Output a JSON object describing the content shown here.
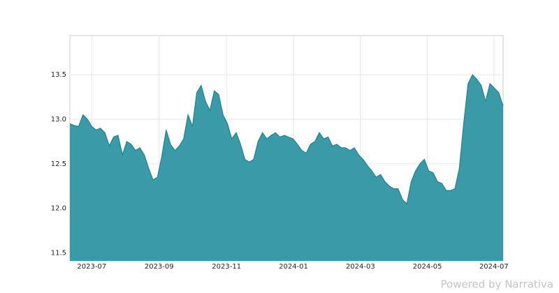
{
  "chart_data": {
    "type": "area",
    "values": [
      12.95,
      12.93,
      12.92,
      13.05,
      13.0,
      12.92,
      12.88,
      12.9,
      12.85,
      12.7,
      12.8,
      12.82,
      12.6,
      12.75,
      12.72,
      12.65,
      12.68,
      12.6,
      12.45,
      12.32,
      12.35,
      12.58,
      12.88,
      12.72,
      12.65,
      12.7,
      12.78,
      13.05,
      12.92,
      13.3,
      13.38,
      13.2,
      13.1,
      13.32,
      13.28,
      13.05,
      12.95,
      12.78,
      12.85,
      12.72,
      12.55,
      12.52,
      12.55,
      12.75,
      12.85,
      12.78,
      12.82,
      12.85,
      12.8,
      12.82,
      12.8,
      12.78,
      12.72,
      12.65,
      12.62,
      12.72,
      12.75,
      12.85,
      12.78,
      12.8,
      12.7,
      12.72,
      12.68,
      12.68,
      12.65,
      12.68,
      12.6,
      12.55,
      12.48,
      12.42,
      12.35,
      12.38,
      12.3,
      12.25,
      12.22,
      12.22,
      12.1,
      12.05,
      12.3,
      12.42,
      12.5,
      12.55,
      12.42,
      12.4,
      12.3,
      12.28,
      12.2,
      12.2,
      12.22,
      12.45,
      12.95,
      13.4,
      13.5,
      13.45,
      13.38,
      13.2,
      13.4,
      13.35,
      13.3,
      13.15
    ],
    "color": "#3a9aa8",
    "line_color": "#1f8290",
    "xlim": [
      0,
      99
    ],
    "xticks": [
      {
        "value": 5,
        "label": "2023-07"
      },
      {
        "value": 20.4,
        "label": "2023-09"
      },
      {
        "value": 35.8,
        "label": "2023-11"
      },
      {
        "value": 51.1,
        "label": "2024-01"
      },
      {
        "value": 66.4,
        "label": "2024-03"
      },
      {
        "value": 81.7,
        "label": "2024-05"
      },
      {
        "value": 96.9,
        "label": "2024-07"
      }
    ],
    "ylim": [
      11.41,
      13.94
    ],
    "yticks": [
      {
        "value": 11.5,
        "label": "11.5"
      },
      {
        "value": 12,
        "label": "12.0"
      },
      {
        "value": 12.5,
        "label": "12.5"
      },
      {
        "value": 13,
        "label": "13.0"
      },
      {
        "value": 13.5,
        "label": "13.5"
      }
    ],
    "grid": true
  },
  "credit": "Powered by Narrativa"
}
